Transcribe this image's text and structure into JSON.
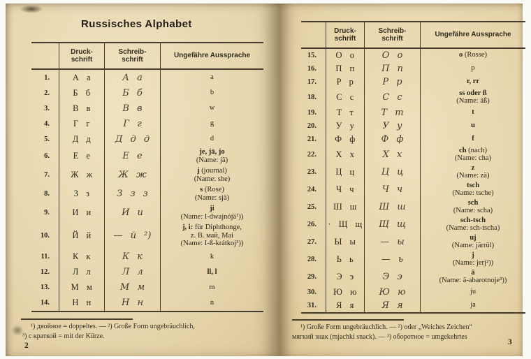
{
  "left_page": {
    "title": "Russisches Alphabet",
    "headers": {
      "num": "",
      "druck": "Druck-\nschrift",
      "schreib": "Schreib-\nschrift",
      "auss": "Ungefähre Aussprache"
    },
    "rows": [
      {
        "num": "1.",
        "druck": "А а",
        "schreib": "А а",
        "lead": "",
        "rest": "a",
        "line2": "",
        "note": ""
      },
      {
        "num": "2.",
        "druck": "Б б",
        "schreib": "Б б",
        "lead": "",
        "rest": "b",
        "line2": "",
        "note": ""
      },
      {
        "num": "3.",
        "druck": "В в",
        "schreib": "В в",
        "lead": "",
        "rest": "w",
        "line2": "",
        "note": ""
      },
      {
        "num": "4.",
        "druck": "Г г",
        "schreib": "Г г",
        "lead": "",
        "rest": "g",
        "line2": "",
        "note": ""
      },
      {
        "num": "5.",
        "druck": "Д д",
        "schreib": "Д д д",
        "lead": "",
        "rest": "d",
        "line2": "",
        "note": ""
      },
      {
        "num": "6.",
        "druck": "Е е",
        "schreib": "Е е",
        "lead": "je, jä, jo",
        "rest": "",
        "line2": "",
        "note": "(Name: jä)"
      },
      {
        "num": "7.",
        "druck": "Ж ж",
        "schreib": "Ж ж",
        "lead": "j",
        "rest": " (journal)",
        "line2": "",
        "note": "(Name: she)"
      },
      {
        "num": "8.",
        "druck": "З з",
        "schreib": "З з з",
        "lead": "s",
        "rest": " (Rose)",
        "line2": "",
        "note": "(Name: sjä)"
      },
      {
        "num": "9.",
        "druck": "И и",
        "schreib": "И и",
        "lead": "ji",
        "rest": "",
        "line2": "",
        "note": "(Name: I-dwajnójä¹))"
      },
      {
        "num": "10.",
        "druck": "Й й",
        "schreib": "— й ²)",
        "lead": "j, i:",
        "rest": " für Diphthonge,",
        "line2": "z. B. май, Mai",
        "note": "(Name: I-ß-krátkoj³))"
      },
      {
        "num": "11.",
        "druck": "К к",
        "schreib": "К к",
        "lead": "",
        "rest": "k",
        "line2": "",
        "note": ""
      },
      {
        "num": "12.",
        "druck": "Л л",
        "schreib": "Л л",
        "lead": "ll, l",
        "rest": "",
        "line2": "",
        "note": ""
      },
      {
        "num": "13.",
        "druck": "М м",
        "schreib": "М м",
        "lead": "",
        "rest": "m",
        "line2": "",
        "note": ""
      },
      {
        "num": "14.",
        "druck": "Н н",
        "schreib": "Н н",
        "lead": "",
        "rest": "n",
        "line2": "",
        "note": ""
      }
    ],
    "footnotes": [
      "¹) двойное = doppeltes. — ²) Große Form ungebräuchlich,",
      "³) с краткой = mit der Kürze."
    ],
    "page_number": "2"
  },
  "right_page": {
    "headers": {
      "num": "",
      "druck": "Druck-\nschrift",
      "schreib": "Schreib-\nschrift",
      "auss": "Ungefähre Aussprache"
    },
    "rows": [
      {
        "num": "15.",
        "druck": "О о",
        "schreib": "О о",
        "lead": "o",
        "rest": " (Rosse)",
        "line2": "",
        "note": ""
      },
      {
        "num": "16.",
        "druck": "П п",
        "schreib": "П п",
        "lead": "",
        "rest": "p",
        "line2": "",
        "note": ""
      },
      {
        "num": "17.",
        "druck": "Р р",
        "schreib": "Р р",
        "lead": "r, rr",
        "rest": "",
        "line2": "",
        "note": ""
      },
      {
        "num": "18.",
        "druck": "С с",
        "schreib": "С с",
        "lead": "ss oder ß",
        "rest": "",
        "line2": "",
        "note": "(Name: äß)"
      },
      {
        "num": "19.",
        "druck": "Т т",
        "schreib": "Т т",
        "lead": "t",
        "rest": "",
        "line2": "",
        "note": ""
      },
      {
        "num": "20.",
        "druck": "У у",
        "schreib": "У у",
        "lead": "u",
        "rest": "",
        "line2": "",
        "note": ""
      },
      {
        "num": "21.",
        "druck": "Ф ф",
        "schreib": "Ф ф",
        "lead": "f",
        "rest": "",
        "line2": "",
        "note": ""
      },
      {
        "num": "22.",
        "druck": "Х х",
        "schreib": "Х х",
        "lead": "ch",
        "rest": " (nach)",
        "line2": "",
        "note": "(Name: cha)"
      },
      {
        "num": "23.",
        "druck": "Ц ц",
        "schreib": "Ц ц",
        "lead": "z",
        "rest": "",
        "line2": "",
        "note": "(Name: zä)"
      },
      {
        "num": "24.",
        "druck": "Ч ч",
        "schreib": "Ч ч",
        "lead": "tsch",
        "rest": "",
        "line2": "",
        "note": "(Name: tsche)"
      },
      {
        "num": "25.",
        "druck": "Ш ш",
        "schreib": "Ш ш",
        "lead": "sch",
        "rest": "",
        "line2": "",
        "note": "(Name: scha)"
      },
      {
        "num": "26.",
        "druck": "· Щ щ",
        "schreib": "Щ щ",
        "lead": "sch-tsch",
        "rest": "",
        "line2": "",
        "note": "(Name: sch-tscha)"
      },
      {
        "num": "27.",
        "druck": "Ы ы",
        "schreib": "— ы",
        "lead": "uj",
        "rest": "",
        "line2": "",
        "note": "(Name: järrül)"
      },
      {
        "num": "28.",
        "druck": "Ь ь",
        "schreib": "— ь",
        "lead": "j",
        "rest": "",
        "line2": "",
        "note": "(Name: jerj²))"
      },
      {
        "num": "29.",
        "druck": "Э э",
        "schreib": "Э э",
        "lead": "ä",
        "rest": "",
        "line2": "",
        "note": "(Name: ä-abarotnoje³))"
      },
      {
        "num": "30.",
        "druck": "Ю ю",
        "schreib": "Ю ю",
        "lead": "",
        "rest": "ju",
        "line2": "",
        "note": ""
      },
      {
        "num": "31.",
        "druck": "Я я",
        "schreib": "Я я",
        "lead": "",
        "rest": "ja",
        "line2": "",
        "note": ""
      }
    ],
    "footnotes": [
      "¹) Große Form ungebräuchlich. — ²) oder „Weiches Zeichen“",
      "мягкий знак (mjachki snack). — ³) оборотное = umgekehrtes"
    ],
    "page_number": "3"
  }
}
